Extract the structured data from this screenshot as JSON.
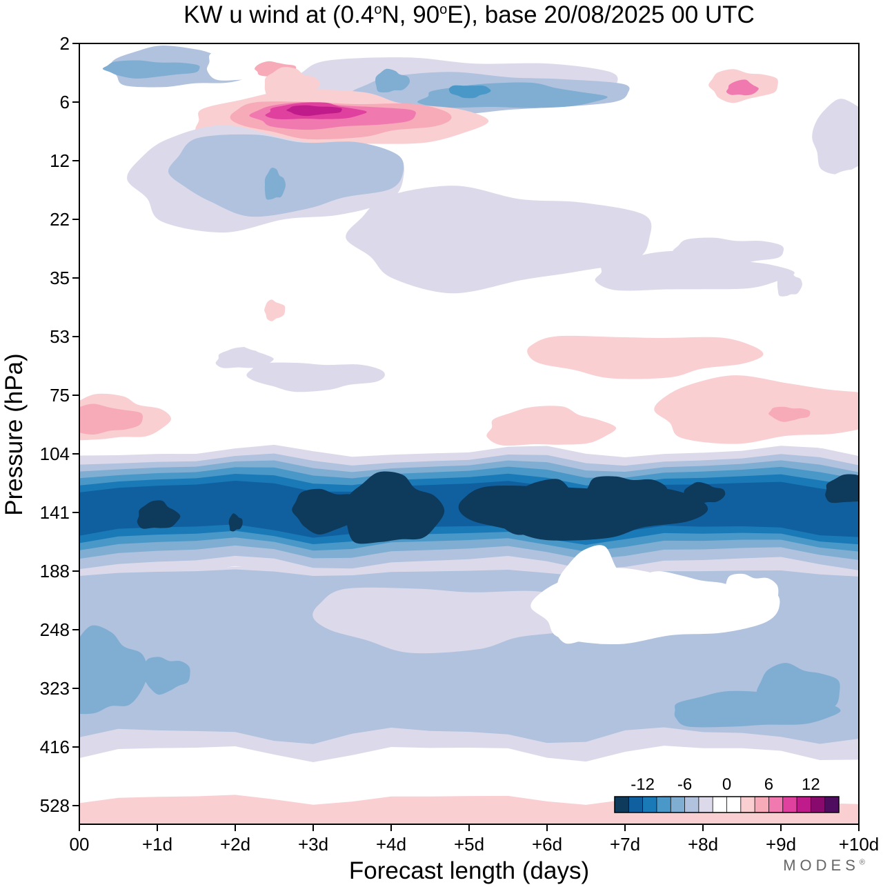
{
  "chart_data": {
    "type": "heatmap",
    "title_parts": {
      "prefix": "KW u wind at (0.4",
      "deg1": "o",
      "mid": "N, 90",
      "deg2": "o",
      "suffix": "E),  base 20/08/2025  00 UTC"
    },
    "xlabel": "Forecast length (days)",
    "ylabel": "Pressure (hPa)",
    "x_ticks": [
      "00",
      "+1d",
      "+2d",
      "+3d",
      "+4d",
      "+5d",
      "+6d",
      "+7d",
      "+8d",
      "+9d",
      "+10d"
    ],
    "x_range_days": [
      0,
      10
    ],
    "y_ticks": [
      "2",
      "6",
      "12",
      "22",
      "35",
      "53",
      "75",
      "104",
      "141",
      "188",
      "248",
      "323",
      "416",
      "528"
    ],
    "y_axis": "pressure, log-scaled, increasing downward",
    "colorbar": {
      "labels": [
        "-12",
        "-6",
        "0",
        "6",
        "12"
      ],
      "colors": [
        "#0e3a5c",
        "#1060a0",
        "#1a7ab8",
        "#4a98c8",
        "#80add2",
        "#b0c2de",
        "#dcdaea",
        "#ffffff",
        "#ffffff",
        "#f9cfd2",
        "#f7aab8",
        "#f07ab0",
        "#e0409e",
        "#c01b8a",
        "#880a6c",
        "#4e0d5e"
      ]
    },
    "contour_levels": [
      -14,
      -12,
      -10,
      -8,
      -6,
      -4,
      -2,
      0,
      2,
      4,
      6,
      8,
      10,
      12,
      14
    ],
    "features": [
      {
        "name": "tropopause easterly jet",
        "pressure_hPa": [
          95,
          220
        ],
        "days": [
          0,
          10
        ],
        "min_u": -13
      },
      {
        "name": "upper-stratosphere westerly max",
        "pressure_hPa": [
          5,
          10
        ],
        "days": [
          1.8,
          4.5
        ],
        "max_u": 12
      },
      {
        "name": "lower-stratosphere westerlies",
        "pressure_hPa": [
          60,
          100
        ],
        "days": [
          0,
          10
        ],
        "max_u": 8
      },
      {
        "name": "mid-troposphere easterlies",
        "pressure_hPa": [
          250,
          420
        ],
        "days": [
          0,
          10
        ],
        "min_u": -6
      },
      {
        "name": "near-surface westerlies",
        "pressure_hPa": [
          480,
          600
        ],
        "days": [
          0,
          10
        ],
        "max_u": 4
      }
    ]
  },
  "watermark": "MODES",
  "watermark_mark": "®"
}
